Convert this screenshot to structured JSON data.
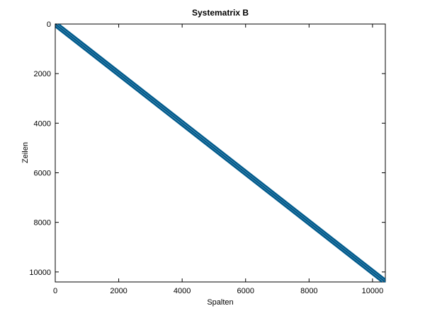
{
  "chart_data": {
    "type": "spy",
    "title": "Systematrix B",
    "xlabel": "Spalten",
    "ylabel": "Zeilen",
    "xlim": [
      0,
      10404
    ],
    "ylim": [
      0,
      10404
    ],
    "y_axis_reversed": true,
    "xticks": [
      0,
      2000,
      4000,
      6000,
      8000,
      10000
    ],
    "yticks": [
      0,
      2000,
      4000,
      6000,
      8000,
      10000
    ],
    "xtick_labels": [
      "0",
      "2000",
      "4000",
      "6000",
      "8000",
      "10000"
    ],
    "ytick_labels": [
      "0",
      "2000",
      "4000",
      "6000",
      "8000",
      "10000"
    ],
    "grid": false,
    "band_offsets": [
      -102,
      0,
      102
    ],
    "band_color": "#005a8c"
  }
}
